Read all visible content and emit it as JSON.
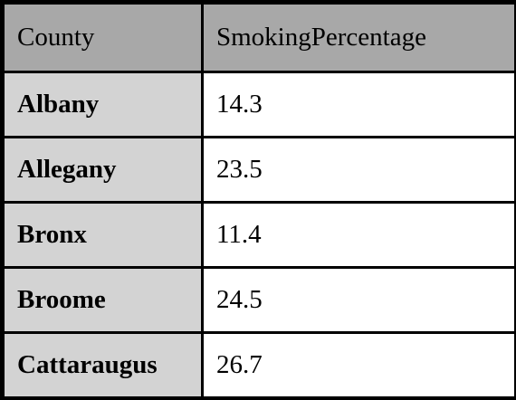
{
  "table": {
    "headers": [
      "County",
      "SmokingPercentage"
    ],
    "rows": [
      {
        "county": "Albany",
        "value": "14.3"
      },
      {
        "county": "Allegany",
        "value": "23.5"
      },
      {
        "county": "Bronx",
        "value": "11.4"
      },
      {
        "county": "Broome",
        "value": "24.5"
      },
      {
        "county": "Cattaraugus",
        "value": "26.7"
      }
    ]
  },
  "colors": {
    "header_bg": "#a8a8a8",
    "first_col_bg": "#d3d3d3",
    "cell_bg": "#ffffff",
    "border": "#000000"
  }
}
